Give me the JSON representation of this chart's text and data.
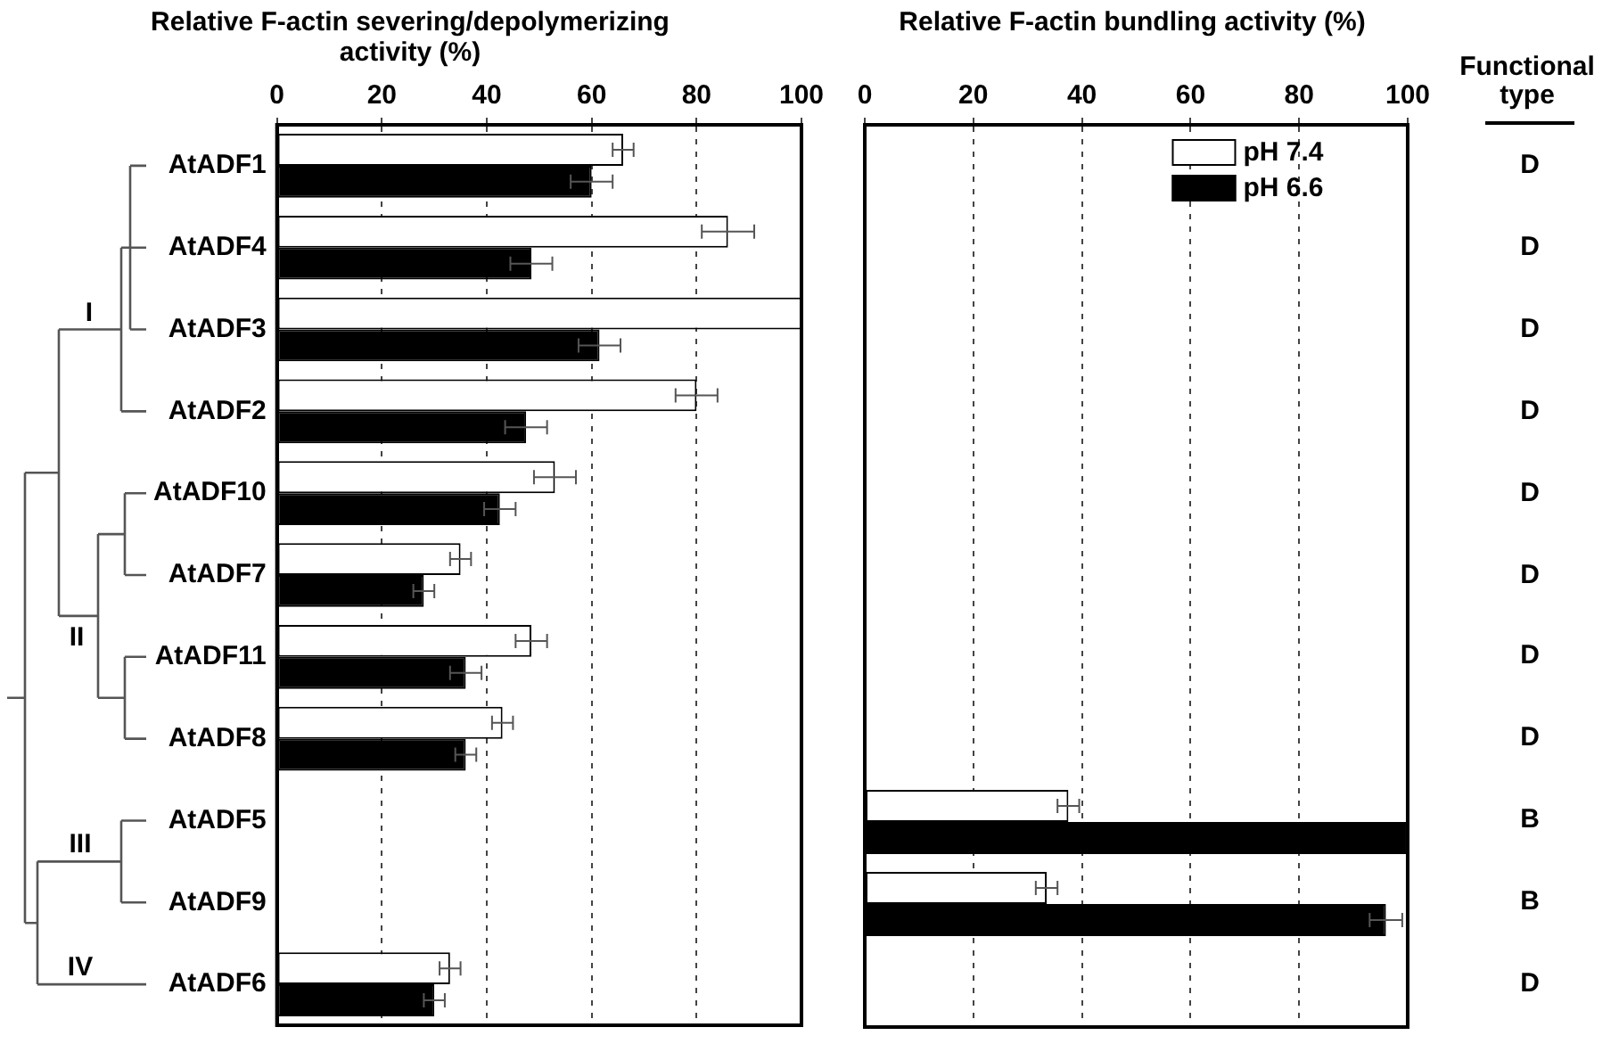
{
  "chart_data": [
    {
      "type": "bar",
      "orientation": "horizontal",
      "xlabel": "Relative F-actin severing/depolymerizing activity (%)",
      "categories": [
        "AtADF1",
        "AtADF4",
        "AtADF3",
        "AtADF2",
        "AtADF10",
        "AtADF7",
        "AtADF11",
        "AtADF8",
        "AtADF5",
        "AtADF9",
        "AtADF6"
      ],
      "series": [
        {
          "color": "#ffffff",
          "values": [
            66,
            86,
            100,
            80,
            53,
            35,
            48.5,
            43,
            null,
            null,
            33
          ],
          "errors": [
            2,
            5,
            null,
            4,
            4,
            2,
            3,
            2,
            null,
            null,
            2
          ]
        },
        {
          "color": "#000000",
          "values": [
            60,
            48.5,
            61.5,
            47.5,
            42.5,
            28,
            36,
            36,
            null,
            null,
            30
          ],
          "errors": [
            4,
            4,
            4,
            4,
            3,
            2,
            3,
            2,
            null,
            null,
            2
          ]
        }
      ],
      "xlim": [
        0,
        100
      ],
      "xticks": [
        0,
        20,
        40,
        60,
        80,
        100
      ],
      "grid": "x",
      "legend": false,
      "annotations": [
        "I",
        "II",
        "III",
        "IV"
      ]
    },
    {
      "type": "bar",
      "orientation": "horizontal",
      "xlabel": "Relative F-actin bundling activity (%)",
      "categories": [
        null,
        null,
        null,
        null,
        null,
        null,
        null,
        null,
        null,
        null,
        null
      ],
      "series": [
        {
          "name": "pH 7.4",
          "color": "#ffffff",
          "values": [
            null,
            null,
            null,
            null,
            null,
            null,
            null,
            null,
            37.5,
            33.5,
            null
          ],
          "errors": [
            null,
            null,
            null,
            null,
            null,
            null,
            null,
            null,
            2,
            2,
            null
          ]
        },
        {
          "name": "pH 6.6",
          "color": "#000000",
          "values": [
            null,
            null,
            null,
            null,
            null,
            null,
            null,
            null,
            100,
            96,
            null
          ],
          "errors": [
            null,
            null,
            null,
            null,
            null,
            null,
            null,
            null,
            null,
            3,
            null
          ]
        }
      ],
      "xlim": [
        0,
        100
      ],
      "xticks": [
        0,
        20,
        40,
        60,
        80,
        100
      ],
      "grid": "x",
      "legend": "top",
      "tick_labels": "x"
    },
    {
      "type": "other",
      "title": "Functional type",
      "annotations": [
        "D",
        "D",
        "D",
        "D",
        "D",
        "D",
        "D",
        "D",
        "B",
        "B",
        "D"
      ]
    }
  ]
}
